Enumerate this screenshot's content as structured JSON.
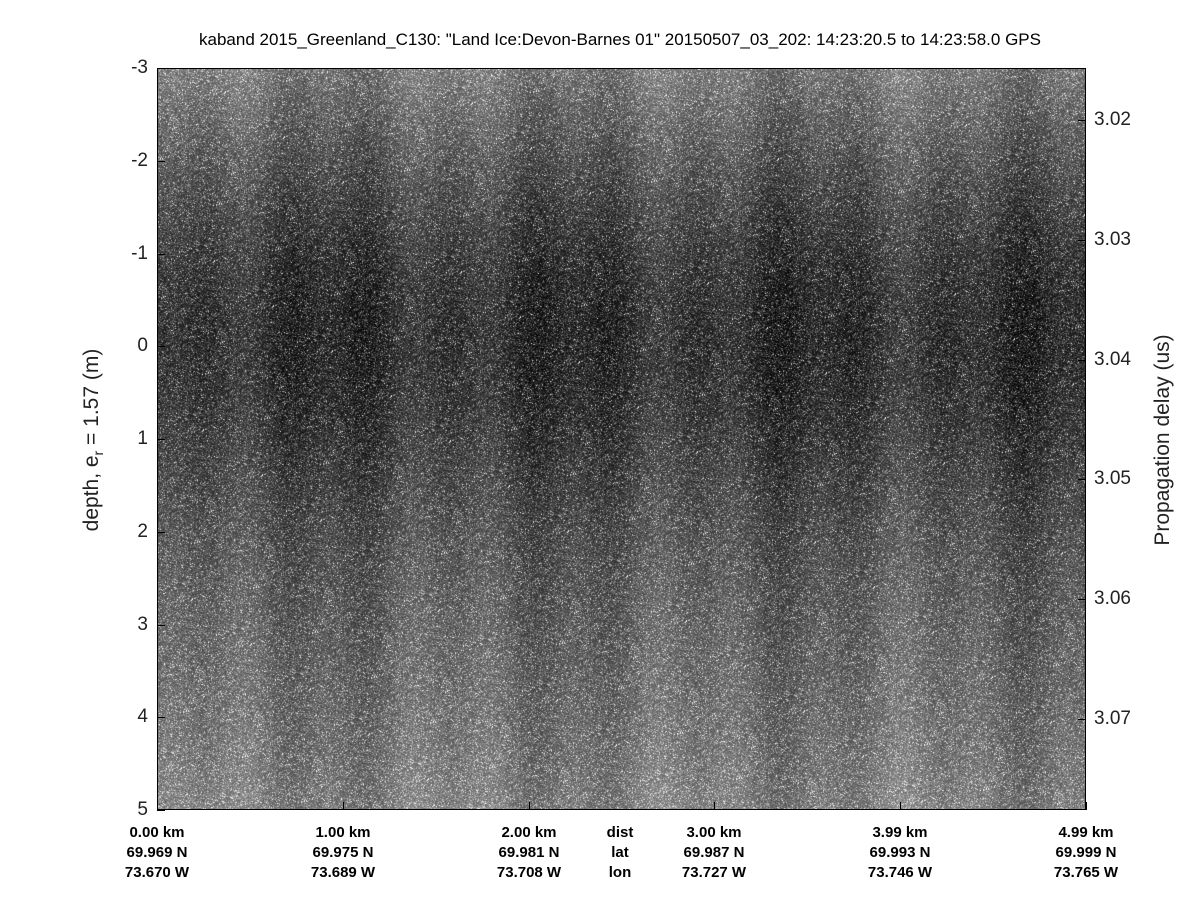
{
  "chart_data": {
    "type": "heatmap",
    "title": "kaband 2015_Greenland_C130: \"Land Ice:Devon-Barnes 01\"  20150507_03_202: 14:23:20.5 to 14:23:58.0 GPS",
    "ylabel_left": "depth, e",
    "ylabel_left_sub": "r",
    "ylabel_left_tail": " = 1.57 (m)",
    "ylabel_right": "Propagation delay (us)",
    "ylim_left": [
      -3,
      5
    ],
    "yticks_left": [
      "-3",
      "-2",
      "-1",
      "0",
      "1",
      "2",
      "3",
      "4",
      "5"
    ],
    "yticks_right": [
      "3.02",
      "3.03",
      "3.04",
      "3.05",
      "3.06",
      "3.07"
    ],
    "yticks_right_values": [
      3.02,
      3.03,
      3.04,
      3.05,
      3.06,
      3.07
    ],
    "row_labels": {
      "dist": "dist",
      "lat": "lat",
      "lon": "lon"
    },
    "x_ticks": [
      {
        "dist": "0.00 km",
        "lat": "69.969 N",
        "lon": "73.670 W"
      },
      {
        "dist": "1.00 km",
        "lat": "69.975 N",
        "lon": "73.689 W"
      },
      {
        "dist": "2.00 km",
        "lat": "69.981 N",
        "lon": "73.708 W"
      },
      {
        "dist": "3.00 km",
        "lat": "69.987 N",
        "lon": "73.727 W"
      },
      {
        "dist": "3.99 km",
        "lat": "69.993 N",
        "lon": "73.746 W"
      },
      {
        "dist": "4.99 km",
        "lat": "69.999 N",
        "lon": "73.765 W"
      }
    ],
    "colormap": "gray"
  }
}
